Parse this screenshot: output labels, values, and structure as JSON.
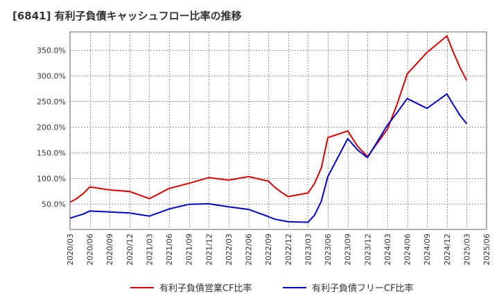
{
  "chart_data": {
    "type": "line",
    "title": "[6841]  有利子負債キャッシュフロー比率の推移",
    "xlabel": "",
    "ylabel": "",
    "ylim": [
      0,
      385
    ],
    "y_ticks": [
      50,
      100,
      150,
      200,
      250,
      300,
      350
    ],
    "y_tick_labels": [
      "50.0%",
      "100.0%",
      "150.0%",
      "200.0%",
      "250.0%",
      "300.0%",
      "350.0%"
    ],
    "x_tick_labels": [
      "2020/03",
      "2020/06",
      "2020/09",
      "2020/12",
      "2021/03",
      "2021/06",
      "2021/09",
      "2021/12",
      "2022/03",
      "2022/06",
      "2022/09",
      "2022/12",
      "2023/03",
      "2023/06",
      "2023/09",
      "2023/12",
      "2024/03",
      "2024/06",
      "2024/09",
      "2024/12",
      "2025/03",
      "2025/06"
    ],
    "grid": true,
    "legend_position": "bottom",
    "series": [
      {
        "name": "有利子負債営業CF比率",
        "color": "#dd0000",
        "points": [
          [
            0,
            53
          ],
          [
            0.33,
            60
          ],
          [
            0.67,
            70
          ],
          [
            1,
            83
          ],
          [
            2,
            77
          ],
          [
            3,
            74
          ],
          [
            4,
            60
          ],
          [
            5,
            80
          ],
          [
            6,
            90
          ],
          [
            7,
            101
          ],
          [
            8,
            96
          ],
          [
            9,
            103
          ],
          [
            10,
            94
          ],
          [
            10.33,
            82
          ],
          [
            10.67,
            72
          ],
          [
            11,
            64
          ],
          [
            12,
            71
          ],
          [
            12.33,
            90
          ],
          [
            12.67,
            120
          ],
          [
            13,
            179
          ],
          [
            14,
            192
          ],
          [
            14.5,
            162
          ],
          [
            15,
            142
          ],
          [
            16,
            195
          ],
          [
            16.5,
            245
          ],
          [
            17,
            303
          ],
          [
            18,
            345
          ],
          [
            19,
            377
          ],
          [
            19.33,
            345
          ],
          [
            19.67,
            315
          ],
          [
            20,
            290
          ]
        ]
      },
      {
        "name": "有利子負債フリーCF比率",
        "color": "#0000cc",
        "points": [
          [
            0,
            22
          ],
          [
            0.67,
            30
          ],
          [
            1,
            36
          ],
          [
            2,
            34
          ],
          [
            3,
            32
          ],
          [
            4,
            26
          ],
          [
            5,
            40
          ],
          [
            6,
            49
          ],
          [
            7,
            50
          ],
          [
            8,
            44
          ],
          [
            9,
            39
          ],
          [
            10,
            25
          ],
          [
            10.33,
            20
          ],
          [
            11,
            15
          ],
          [
            12,
            14
          ],
          [
            12.33,
            28
          ],
          [
            12.67,
            55
          ],
          [
            13,
            103
          ],
          [
            14,
            177
          ],
          [
            14.5,
            155
          ],
          [
            15,
            140
          ],
          [
            16,
            203
          ],
          [
            16.5,
            228
          ],
          [
            17,
            255
          ],
          [
            18,
            236
          ],
          [
            19,
            264
          ],
          [
            19.33,
            243
          ],
          [
            19.67,
            222
          ],
          [
            20,
            206
          ]
        ]
      }
    ]
  }
}
